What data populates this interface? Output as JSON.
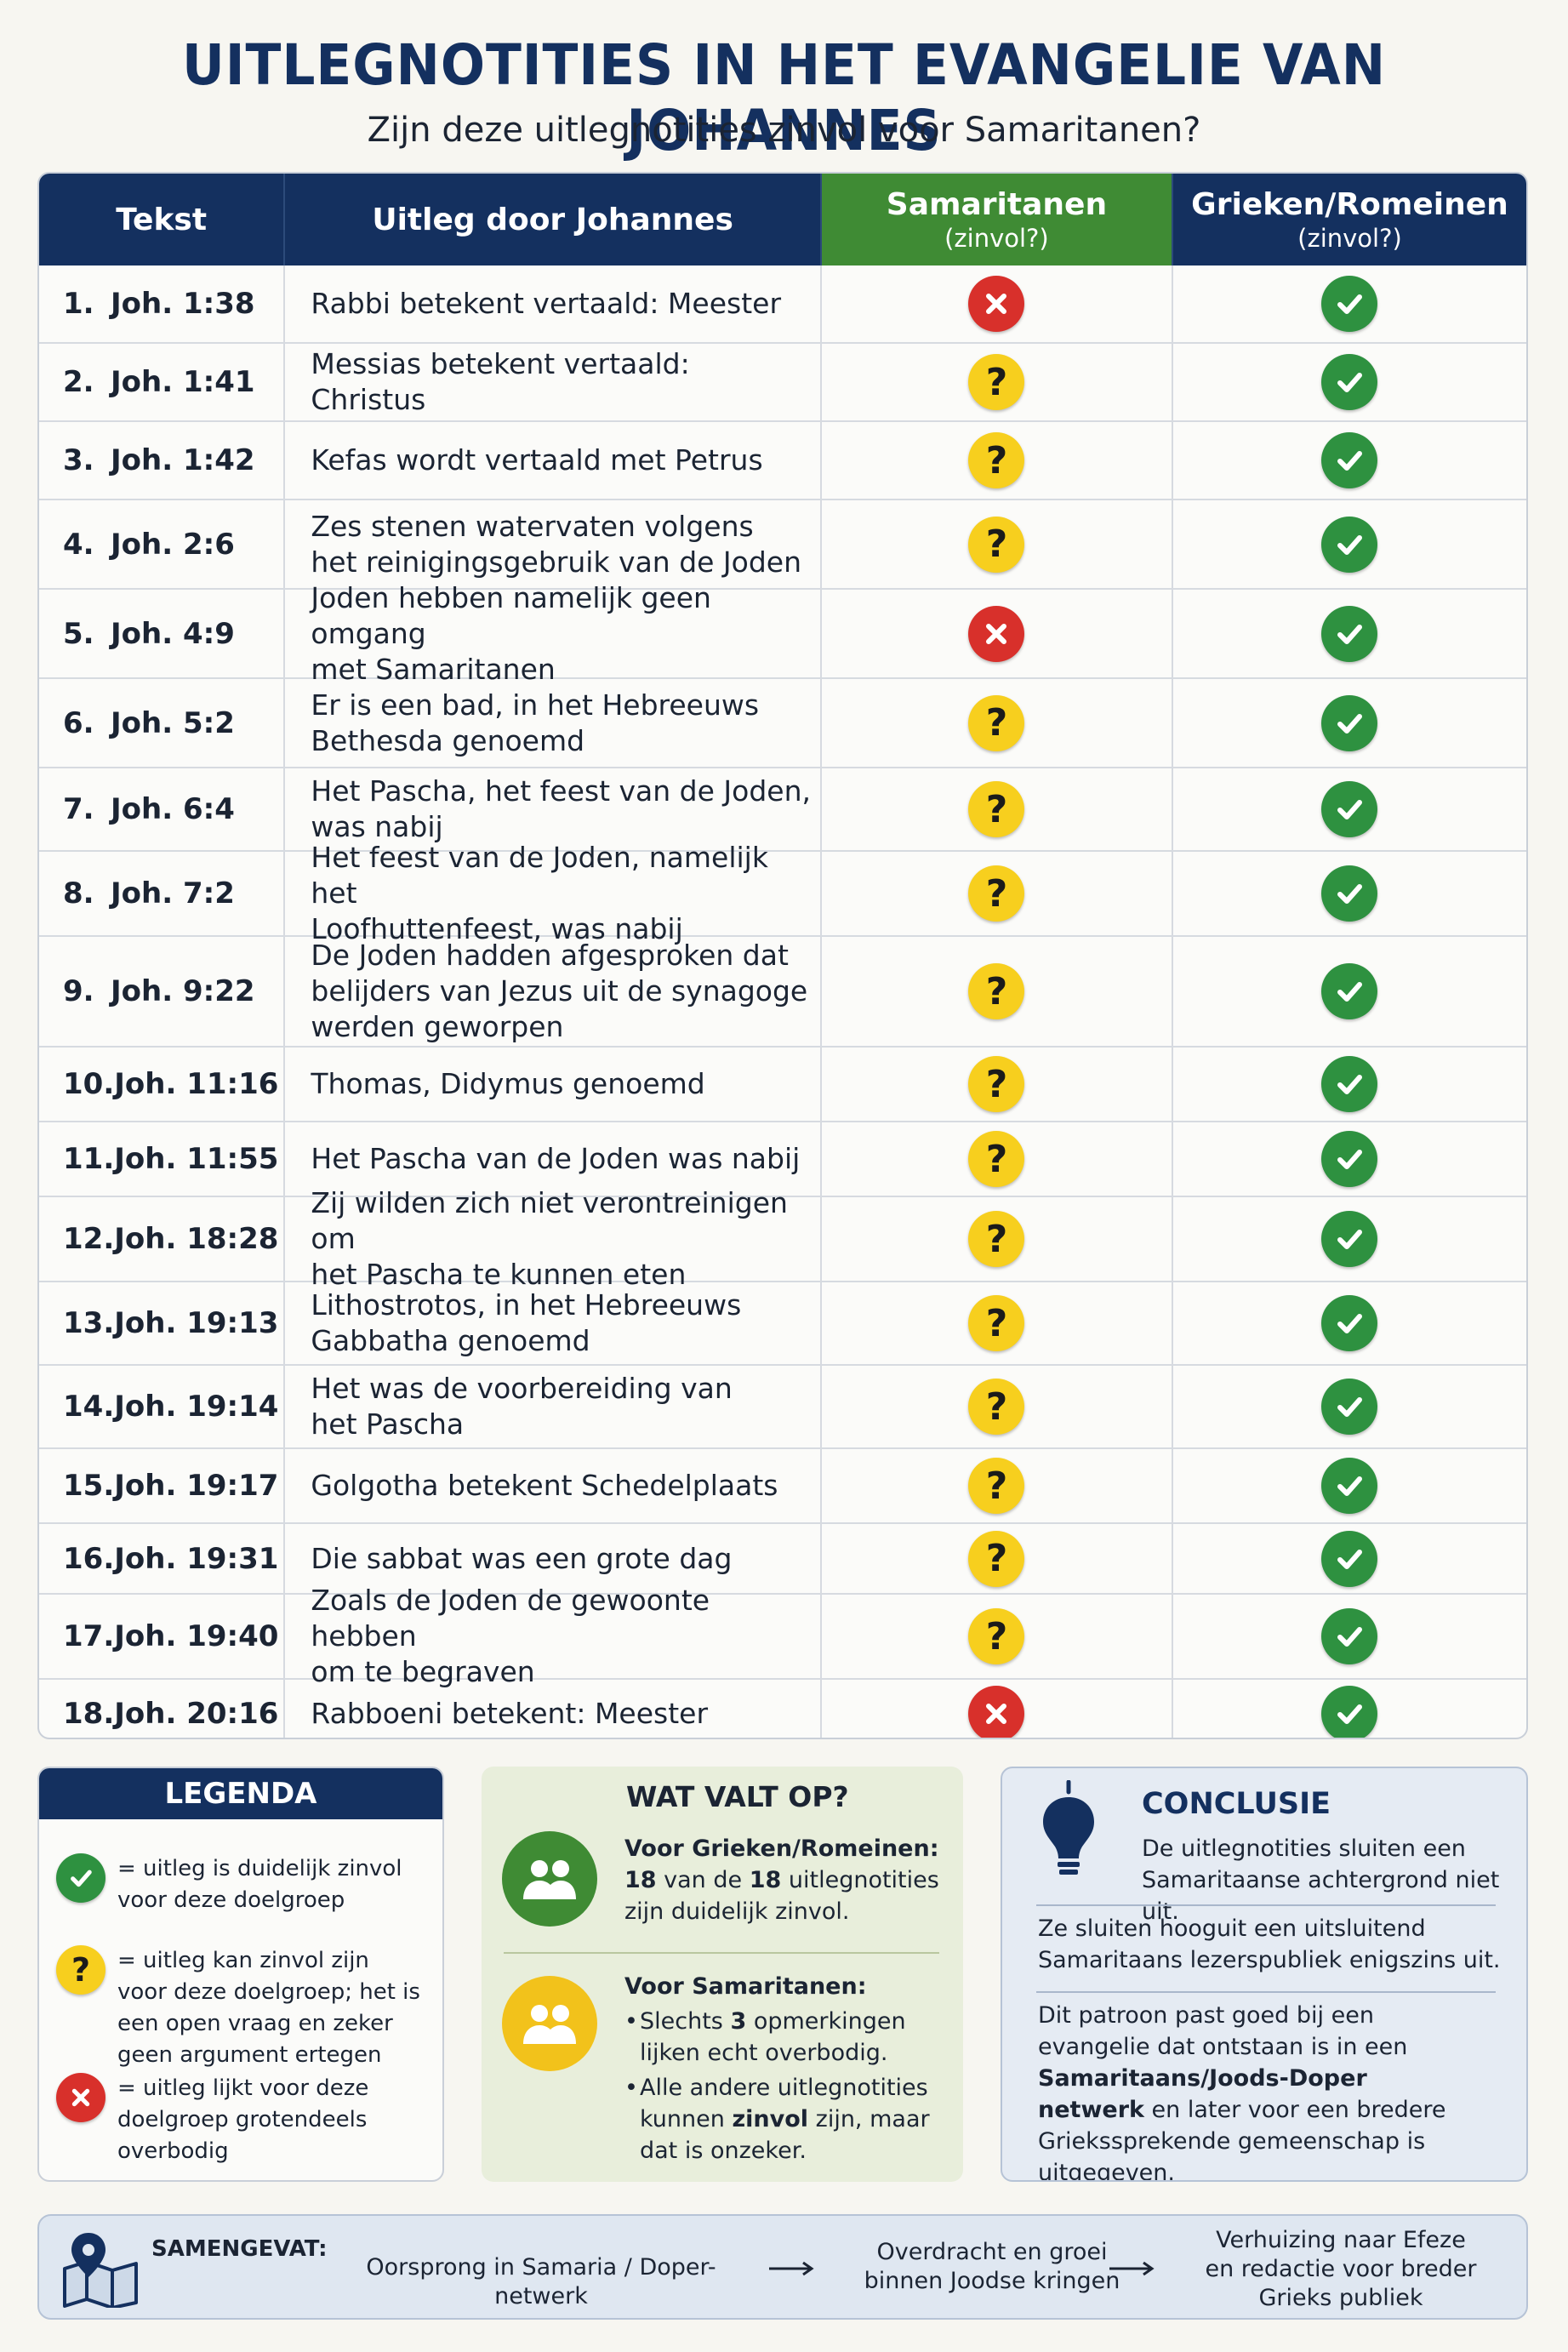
{
  "title": "UITLEGNOTITIES IN HET EVANGELIE VAN JOHANNES",
  "subtitle": "Zijn deze uitlegnotities zinvol voor Samaritanen?",
  "table": {
    "headers": {
      "tekst": "Tekst",
      "uitleg": "Uitleg door Johannes",
      "samaritanen": "Samaritanen",
      "samaritanen_sub": "(zinvol?)",
      "grieken": "Grieken/Romeinen",
      "grieken_sub": "(zinvol?)"
    },
    "rows": [
      {
        "num": "1.",
        "ref": "Joh. 1:38",
        "lines": [
          "Rabbi betekent vertaald: Meester"
        ],
        "sam": "no",
        "gr": "yes"
      },
      {
        "num": "2.",
        "ref": "Joh. 1:41",
        "lines": [
          "Messias betekent vertaald: Christus"
        ],
        "sam": "maybe",
        "gr": "yes"
      },
      {
        "num": "3.",
        "ref": "Joh. 1:42",
        "lines": [
          "Kefas wordt vertaald met Petrus"
        ],
        "sam": "maybe",
        "gr": "yes"
      },
      {
        "num": "4.",
        "ref": "Joh. 2:6",
        "lines": [
          "Zes stenen watervaten volgens",
          "het reinigingsgebruik van de Joden"
        ],
        "sam": "maybe",
        "gr": "yes"
      },
      {
        "num": "5.",
        "ref": "Joh. 4:9",
        "lines": [
          "Joden hebben namelijk geen omgang",
          "met Samaritanen"
        ],
        "sam": "no",
        "gr": "yes"
      },
      {
        "num": "6.",
        "ref": "Joh. 5:2",
        "lines": [
          "Er is een bad, in het Hebreeuws",
          "Bethesda genoemd"
        ],
        "sam": "maybe",
        "gr": "yes"
      },
      {
        "num": "7.",
        "ref": "Joh. 6:4",
        "lines": [
          "Het Pascha, het feest van de Joden,",
          "was nabij"
        ],
        "sam": "maybe",
        "gr": "yes"
      },
      {
        "num": "8.",
        "ref": "Joh. 7:2",
        "lines": [
          "Het feest van de Joden, namelijk het",
          "Loofhuttenfeest, was nabij"
        ],
        "sam": "maybe",
        "gr": "yes"
      },
      {
        "num": "9.",
        "ref": "Joh. 9:22",
        "lines": [
          "De Joden hadden afgesproken dat",
          "belijders van Jezus uit de synagoge",
          "werden geworpen"
        ],
        "sam": "maybe",
        "gr": "yes"
      },
      {
        "num": "10.",
        "ref": "Joh. 11:16",
        "lines": [
          "Thomas, Didymus genoemd"
        ],
        "sam": "maybe",
        "gr": "yes"
      },
      {
        "num": "11.",
        "ref": "Joh. 11:55",
        "lines": [
          "Het Pascha van de Joden was nabij"
        ],
        "sam": "maybe",
        "gr": "yes"
      },
      {
        "num": "12.",
        "ref": "Joh. 18:28",
        "lines": [
          "Zij wilden zich niet verontreinigen om",
          "het Pascha te kunnen eten"
        ],
        "sam": "maybe",
        "gr": "yes"
      },
      {
        "num": "13.",
        "ref": "Joh. 19:13",
        "lines": [
          "Lithostrotos, in het Hebreeuws",
          "Gabbatha genoemd"
        ],
        "sam": "maybe",
        "gr": "yes"
      },
      {
        "num": "14.",
        "ref": "Joh. 19:14",
        "lines": [
          "Het was de voorbereiding van",
          "het Pascha"
        ],
        "sam": "maybe",
        "gr": "yes"
      },
      {
        "num": "15.",
        "ref": "Joh. 19:17",
        "lines": [
          "Golgotha betekent Schedelplaats"
        ],
        "sam": "maybe",
        "gr": "yes"
      },
      {
        "num": "16.",
        "ref": "Joh. 19:31",
        "lines": [
          "Die sabbat was een grote dag"
        ],
        "sam": "maybe",
        "gr": "yes"
      },
      {
        "num": "17.",
        "ref": "Joh. 19:40",
        "lines": [
          "Zoals de Joden de gewoonte hebben",
          "om te begraven"
        ],
        "sam": "maybe",
        "gr": "yes"
      },
      {
        "num": "18.",
        "ref": "Joh. 20:16",
        "lines": [
          "Rabboeni betekent: Meester"
        ],
        "sam": "no",
        "gr": "yes"
      }
    ]
  },
  "legend": {
    "title": "LEGENDA",
    "items": [
      {
        "icon": "yes",
        "text": "= uitleg is duidelijk zinvol voor deze doelgroep"
      },
      {
        "icon": "maybe",
        "text": "= uitleg kan zinvol zijn voor deze doelgroep; het is een open vraag en zeker geen argument ertegen"
      },
      {
        "icon": "no",
        "text": "= uitleg lijkt voor deze doelgroep grotendeels overbodig"
      }
    ]
  },
  "wat_valt_op": {
    "title": "WAT VALT OP?",
    "grieken": {
      "heading": "Voor Grieken/Romeinen:",
      "n1": "18",
      "mid": " van de ",
      "n2": "18",
      "tail": " uitlegnotities zijn duidelijk zinvol."
    },
    "samaritanen": {
      "heading": "Voor Samaritanen:",
      "b1_pre": "Slechts ",
      "b1_num": "3",
      "b1_post": " opmerkingen lijken echt overbodig.",
      "b2_pre": "Alle andere uitlegnotities kunnen ",
      "b2_bold": "zinvol",
      "b2_post": " zijn, maar dat is onzeker."
    }
  },
  "conclusie": {
    "title": "CONCLUSIE",
    "p1": "De uitlegnotities sluiten een Samaritaanse achtergrond niet uit.",
    "p2": "Ze sluiten hooguit een uitsluitend Samaritaans lezerspubliek enigszins uit.",
    "p3_pre": "Dit patroon past goed bij een evangelie dat ontstaan is in een ",
    "p3_bold": "Samaritaans/Joods-Doper netwerk",
    "p3_post": " en later voor een bredere Griekssprekende gemeenschap is uitgegeven."
  },
  "samengevat": {
    "label": "SAMENGEVAT:",
    "step1": "Oorsprong in Samaria / Doper-netwerk",
    "step2_l1": "Overdracht en groei",
    "step2_l2": "binnen Joodse kringen",
    "step3_l1": "Verhuizing naar Efeze",
    "step3_l2": "en redactie voor breder",
    "step3_l3": "Grieks publiek"
  },
  "colors": {
    "navy": "#14305f",
    "green_header": "#3f8b34",
    "check_green": "#2e9140",
    "cross_red": "#d8302b",
    "question_yellow": "#f7cf1e"
  }
}
